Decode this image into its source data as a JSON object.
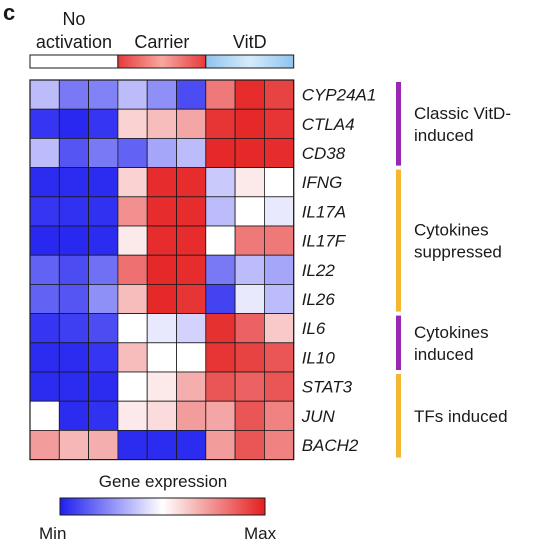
{
  "panel_label": "c",
  "chart_data": {
    "type": "heatmap",
    "groups": [
      {
        "label_lines": [
          "No",
          "activation"
        ],
        "bar": "white"
      },
      {
        "label_lines": [
          "Carrier"
        ],
        "bar": "red"
      },
      {
        "label_lines": [
          "VitD"
        ],
        "bar": "blue"
      }
    ],
    "columns_per_group": 3,
    "rows": [
      "CYP24A1",
      "CTLA4",
      "CD38",
      "IFNG",
      "IL17A",
      "IL17F",
      "IL22",
      "IL26",
      "IL6",
      "IL10",
      "STAT3",
      "JUN",
      "BACH2"
    ],
    "values": [
      [
        0.35,
        0.2,
        0.22,
        0.35,
        0.25,
        0.1,
        0.8,
        0.97,
        0.92
      ],
      [
        0.05,
        0.02,
        0.05,
        0.6,
        0.65,
        0.7,
        0.95,
        0.98,
        0.95
      ],
      [
        0.35,
        0.12,
        0.2,
        0.15,
        0.3,
        0.35,
        0.98,
        0.98,
        0.97
      ],
      [
        0.03,
        0.03,
        0.03,
        0.6,
        0.97,
        0.97,
        0.38,
        0.55,
        0.5
      ],
      [
        0.05,
        0.04,
        0.04,
        0.75,
        0.97,
        0.97,
        0.35,
        0.5,
        0.45
      ],
      [
        0.02,
        0.02,
        0.03,
        0.55,
        0.97,
        0.97,
        0.5,
        0.8,
        0.8
      ],
      [
        0.15,
        0.1,
        0.18,
        0.82,
        0.98,
        0.97,
        0.2,
        0.35,
        0.3
      ],
      [
        0.15,
        0.12,
        0.25,
        0.65,
        0.98,
        0.95,
        0.08,
        0.45,
        0.35
      ],
      [
        0.05,
        0.07,
        0.1,
        0.5,
        0.45,
        0.4,
        0.96,
        0.85,
        0.62
      ],
      [
        0.03,
        0.03,
        0.05,
        0.65,
        0.5,
        0.5,
        0.95,
        0.92,
        0.88
      ],
      [
        0.03,
        0.03,
        0.03,
        0.5,
        0.55,
        0.68,
        0.88,
        0.85,
        0.88
      ],
      [
        0.5,
        0.03,
        0.04,
        0.55,
        0.58,
        0.72,
        0.7,
        0.88,
        0.78
      ],
      [
        0.72,
        0.66,
        0.68,
        0.03,
        0.03,
        0.03,
        0.72,
        0.88,
        0.78
      ]
    ],
    "scale": {
      "min": 0,
      "max": 1,
      "colormap": "blue-white-red"
    },
    "annotations": [
      {
        "lines": [
          "Classic VitD-",
          "induced"
        ],
        "row_start": 0,
        "row_end": 2,
        "color": "#9b27b0"
      },
      {
        "lines": [
          "Cytokines",
          "suppressed"
        ],
        "row_start": 3,
        "row_end": 7,
        "color": "#f5b731"
      },
      {
        "lines": [
          "Cytokines",
          "induced"
        ],
        "row_start": 8,
        "row_end": 9,
        "color": "#9b27b0"
      },
      {
        "lines": [
          "TFs induced"
        ],
        "row_start": 10,
        "row_end": 12,
        "color": "#f5b731"
      }
    ],
    "legend": {
      "title": "Gene expression",
      "min_label": "Min",
      "max_label": "Max"
    }
  }
}
